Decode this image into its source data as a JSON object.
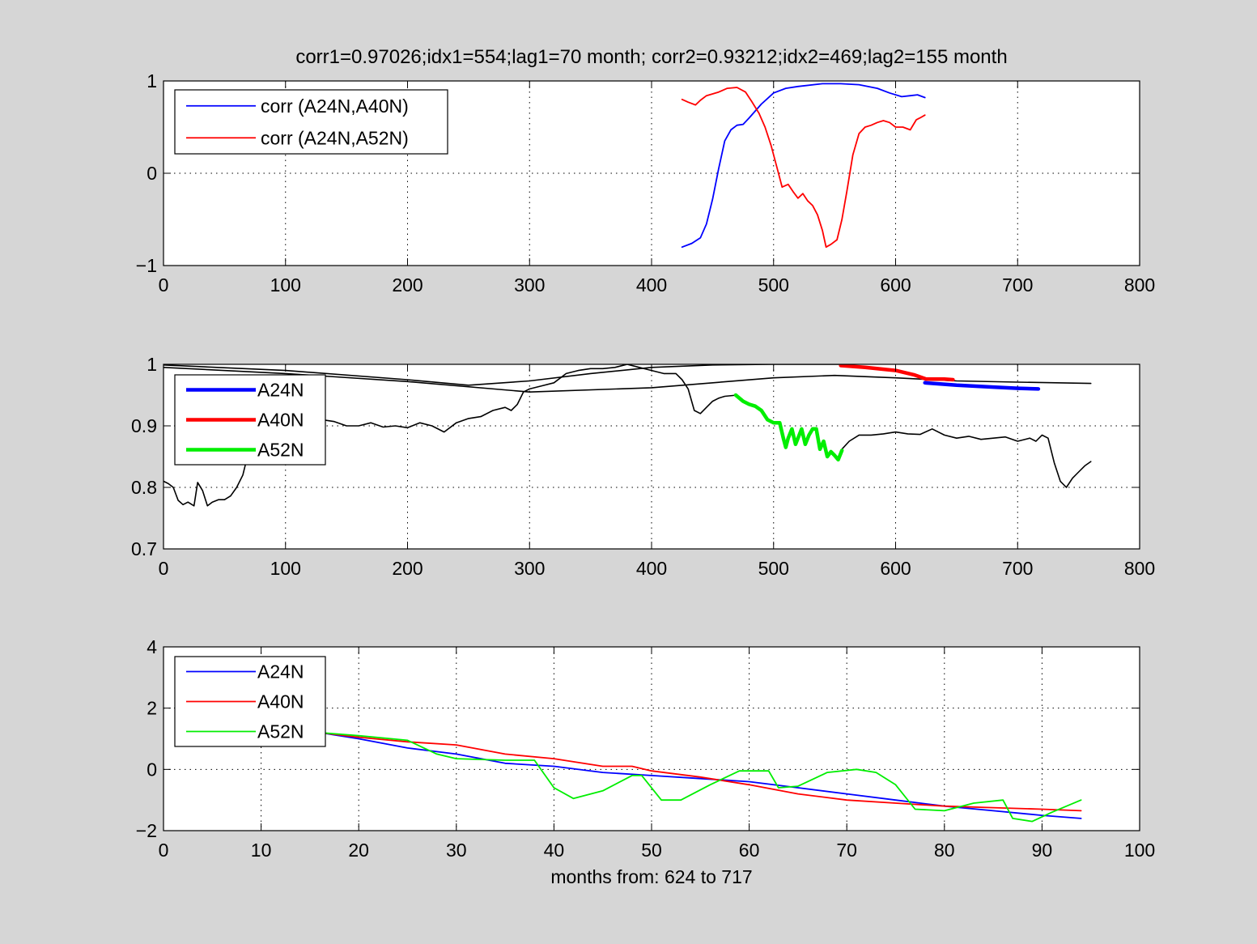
{
  "figure": {
    "title": "corr1=0.97026;idx1=554;lag1=70 month;   corr2=0.93212;idx2=469;lag2=155 month",
    "background": "#d6d6d6"
  },
  "chart_data": [
    {
      "type": "line",
      "xlim": [
        0,
        800
      ],
      "ylim": [
        -1,
        1
      ],
      "xticks": [
        0,
        100,
        200,
        300,
        400,
        500,
        600,
        700,
        800
      ],
      "yticks": [
        -1,
        0,
        1
      ],
      "grid": true,
      "legend_position": "top-left",
      "series": [
        {
          "name": "corr (A24N,A40N)",
          "color": "#0000ff",
          "show_in_legend": true,
          "width": 1.8,
          "x": [
            425,
            433,
            440,
            445,
            450,
            455,
            460,
            465,
            470,
            475,
            480,
            490,
            500,
            510,
            520,
            540,
            555,
            570,
            585,
            595,
            605,
            612,
            618,
            624
          ],
          "y": [
            -0.8,
            -0.76,
            -0.7,
            -0.55,
            -0.28,
            0.05,
            0.35,
            0.47,
            0.52,
            0.53,
            0.6,
            0.75,
            0.87,
            0.92,
            0.94,
            0.97,
            0.97,
            0.96,
            0.92,
            0.87,
            0.83,
            0.84,
            0.85,
            0.82
          ]
        },
        {
          "name": "corr (A24N,A52N)",
          "color": "#ff0000",
          "show_in_legend": true,
          "width": 1.8,
          "x": [
            425,
            430,
            436,
            440,
            445,
            455,
            462,
            470,
            477,
            482,
            488,
            493,
            498,
            503,
            507,
            512,
            516,
            520,
            524,
            528,
            532,
            536,
            540,
            543,
            547,
            552,
            556,
            560,
            565,
            570,
            575,
            580,
            585,
            590,
            595,
            600,
            606,
            612,
            617,
            620,
            624
          ],
          "y": [
            0.8,
            0.77,
            0.74,
            0.79,
            0.84,
            0.88,
            0.92,
            0.93,
            0.88,
            0.78,
            0.65,
            0.5,
            0.3,
            0.05,
            -0.15,
            -0.12,
            -0.2,
            -0.27,
            -0.22,
            -0.3,
            -0.35,
            -0.45,
            -0.62,
            -0.8,
            -0.77,
            -0.72,
            -0.5,
            -0.2,
            0.2,
            0.43,
            0.5,
            0.52,
            0.55,
            0.57,
            0.55,
            0.5,
            0.5,
            0.47,
            0.58,
            0.6,
            0.63
          ]
        }
      ]
    },
    {
      "type": "line",
      "xlim": [
        0,
        800
      ],
      "ylim": [
        0.7,
        1
      ],
      "xticks": [
        0,
        100,
        200,
        300,
        400,
        500,
        600,
        700,
        800
      ],
      "yticks": [
        0.7,
        0.8,
        0.9,
        1
      ],
      "grid": true,
      "legend_position": "top-left",
      "series": [
        {
          "color": "#000000",
          "show_in_legend": false,
          "width": 1.6,
          "x": [
            0,
            100,
            200,
            250,
            300,
            350,
            400,
            450,
            500,
            555
          ],
          "y": [
            0.999,
            0.99,
            0.975,
            0.966,
            0.973,
            0.985,
            0.995,
            0.999,
            1.0,
            1.0
          ]
        },
        {
          "color": "#000000",
          "show_in_legend": false,
          "width": 1.6,
          "x": [
            0,
            100,
            200,
            300,
            400,
            500,
            550,
            600,
            650,
            700,
            760
          ],
          "y": [
            0.995,
            0.985,
            0.972,
            0.955,
            0.962,
            0.978,
            0.982,
            0.978,
            0.973,
            0.971,
            0.969
          ]
        },
        {
          "color": "#000000",
          "show_in_legend": false,
          "width": 1.6,
          "x": [
            0,
            4,
            8,
            12,
            16,
            20,
            25,
            28,
            32,
            36,
            40,
            45,
            50,
            55,
            60,
            65,
            70,
            80,
            90,
            100,
            110,
            120,
            130,
            140,
            150,
            160,
            170,
            180,
            190,
            200,
            210,
            220,
            230,
            240,
            250,
            260,
            270,
            280,
            285,
            290,
            295,
            300,
            310,
            320,
            330,
            340,
            350,
            360,
            370,
            380,
            390,
            400,
            410,
            420,
            425,
            430,
            435,
            440,
            445,
            450,
            455,
            460,
            470
          ],
          "y": [
            0.81,
            0.806,
            0.8,
            0.779,
            0.772,
            0.776,
            0.77,
            0.808,
            0.795,
            0.77,
            0.776,
            0.78,
            0.78,
            0.786,
            0.8,
            0.82,
            0.86,
            0.89,
            0.905,
            0.9,
            0.912,
            0.905,
            0.91,
            0.907,
            0.9,
            0.9,
            0.905,
            0.898,
            0.9,
            0.897,
            0.905,
            0.9,
            0.89,
            0.905,
            0.912,
            0.915,
            0.925,
            0.93,
            0.925,
            0.935,
            0.955,
            0.96,
            0.965,
            0.97,
            0.985,
            0.99,
            0.993,
            0.993,
            0.995,
            1.0,
            0.995,
            0.99,
            0.985,
            0.985,
            0.975,
            0.96,
            0.925,
            0.92,
            0.93,
            0.94,
            0.945,
            0.948,
            0.95
          ]
        },
        {
          "color": "#000000",
          "show_in_legend": false,
          "width": 1.6,
          "x": [
            555,
            562,
            570,
            580,
            590,
            600,
            610,
            620,
            630,
            640,
            650,
            660,
            670,
            680,
            690,
            700,
            710,
            715,
            720,
            725,
            730,
            735,
            740,
            745,
            750,
            755,
            760
          ],
          "y": [
            0.86,
            0.875,
            0.885,
            0.885,
            0.887,
            0.89,
            0.887,
            0.886,
            0.895,
            0.885,
            0.88,
            0.883,
            0.878,
            0.88,
            0.882,
            0.875,
            0.88,
            0.875,
            0.885,
            0.88,
            0.84,
            0.81,
            0.8,
            0.815,
            0.825,
            0.835,
            0.842
          ]
        },
        {
          "name": "A24N",
          "color": "#0000ff",
          "show_in_legend": true,
          "width": 4.5,
          "x": [
            624,
            650,
            680,
            700,
            717
          ],
          "y": [
            0.97,
            0.966,
            0.963,
            0.961,
            0.96
          ]
        },
        {
          "name": "A40N",
          "color": "#ff0000",
          "show_in_legend": true,
          "width": 4.5,
          "x": [
            555,
            575,
            600,
            615,
            625,
            640,
            647
          ],
          "y": [
            0.998,
            0.995,
            0.99,
            0.983,
            0.976,
            0.976,
            0.975
          ]
        },
        {
          "name": "A52N",
          "color": "#00ee00",
          "show_in_legend": true,
          "width": 4.5,
          "x": [
            469,
            475,
            480,
            485,
            490,
            495,
            500,
            505,
            508,
            510,
            512,
            515,
            518,
            520,
            523,
            526,
            529,
            532,
            535,
            538,
            541,
            544,
            547,
            550,
            553,
            556
          ],
          "y": [
            0.95,
            0.94,
            0.935,
            0.932,
            0.925,
            0.91,
            0.905,
            0.905,
            0.88,
            0.865,
            0.88,
            0.895,
            0.87,
            0.88,
            0.895,
            0.87,
            0.885,
            0.895,
            0.895,
            0.862,
            0.875,
            0.85,
            0.858,
            0.852,
            0.845,
            0.86
          ]
        }
      ]
    },
    {
      "type": "line",
      "xlim": [
        0,
        100
      ],
      "ylim": [
        -2,
        4
      ],
      "xticks": [
        0,
        10,
        20,
        30,
        40,
        50,
        60,
        70,
        80,
        90,
        100
      ],
      "yticks": [
        -2,
        0,
        2,
        4
      ],
      "xlabel": "months from: 624 to 717",
      "grid": true,
      "legend_position": "top-left",
      "series": [
        {
          "name": "A24N",
          "color": "#0000ff",
          "show_in_legend": true,
          "width": 1.8,
          "x": [
            16,
            20,
            25,
            30,
            35,
            40,
            45,
            50,
            55,
            60,
            65,
            70,
            75,
            80,
            85,
            90,
            94
          ],
          "y": [
            1.2,
            1.0,
            0.7,
            0.5,
            0.2,
            0.1,
            -0.1,
            -0.2,
            -0.3,
            -0.4,
            -0.6,
            -0.8,
            -1.0,
            -1.2,
            -1.35,
            -1.5,
            -1.6
          ]
        },
        {
          "name": "A40N",
          "color": "#ff0000",
          "show_in_legend": true,
          "width": 1.8,
          "x": [
            16,
            20,
            25,
            30,
            35,
            40,
            45,
            48,
            50,
            55,
            60,
            65,
            70,
            75,
            80,
            85,
            90,
            94
          ],
          "y": [
            1.2,
            1.05,
            0.9,
            0.8,
            0.5,
            0.35,
            0.1,
            0.1,
            -0.05,
            -0.25,
            -0.5,
            -0.8,
            -1.0,
            -1.1,
            -1.2,
            -1.25,
            -1.3,
            -1.35
          ]
        },
        {
          "name": "A52N",
          "color": "#00ee00",
          "show_in_legend": true,
          "width": 1.8,
          "x": [
            16,
            20,
            25,
            28,
            30,
            35,
            38,
            40,
            42,
            45,
            48,
            49,
            51,
            53,
            56,
            59,
            61,
            62,
            63,
            65,
            68,
            71,
            73,
            75,
            77,
            80,
            83,
            86,
            87,
            89,
            91,
            94
          ],
          "y": [
            1.2,
            1.1,
            0.95,
            0.5,
            0.35,
            0.3,
            0.3,
            -0.6,
            -0.95,
            -0.7,
            -0.2,
            -0.2,
            -1.0,
            -1.0,
            -0.5,
            -0.05,
            -0.05,
            -0.05,
            -0.6,
            -0.55,
            -0.1,
            0.0,
            -0.1,
            -0.5,
            -1.3,
            -1.35,
            -1.1,
            -1.0,
            -1.6,
            -1.7,
            -1.4,
            -1.0
          ]
        }
      ]
    }
  ]
}
